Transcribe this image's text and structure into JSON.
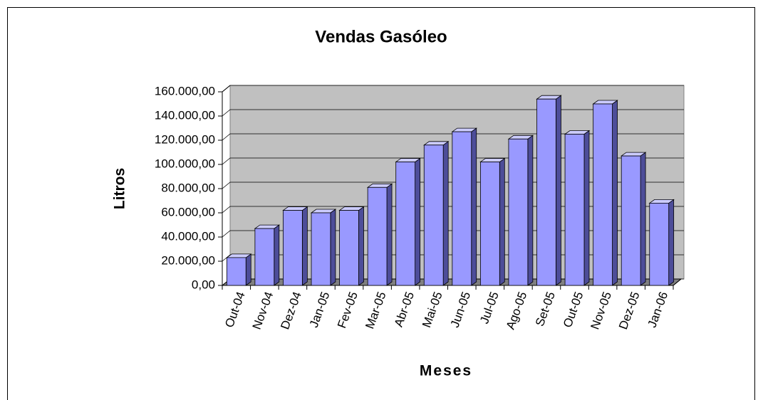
{
  "chart_data": {
    "type": "bar3d",
    "title": "Vendas Gasóleo",
    "x_label": "Meses",
    "y_label": "Litros",
    "categories": [
      "Out-04",
      "Nov-04",
      "Dez-04",
      "Jan-05",
      "Fev-05",
      "Mar-05",
      "Abr-05",
      "Mai-05",
      "Jun-05",
      "Jul-05",
      "Ago-05",
      "Set-05",
      "Out-05",
      "Nov-05",
      "Dez-05",
      "Jan-06"
    ],
    "values": [
      23000,
      47000,
      62000,
      60000,
      62000,
      81000,
      102000,
      116000,
      127000,
      102000,
      121000,
      154000,
      125000,
      150000,
      107000,
      68000
    ],
    "color": "#9999ff",
    "ylim": [
      0,
      160000
    ],
    "yticks": [
      {
        "value": 0,
        "label": "0,00"
      },
      {
        "value": 20000,
        "label": "20.000,00"
      },
      {
        "value": 40000,
        "label": "40.000,00"
      },
      {
        "value": 60000,
        "label": "60.000,00"
      },
      {
        "value": 80000,
        "label": "80.000,00"
      },
      {
        "value": 100000,
        "label": "100.000,00"
      },
      {
        "value": 120000,
        "label": "120.000,00"
      },
      {
        "value": 140000,
        "label": "140.000,00"
      },
      {
        "value": 160000,
        "label": "160.000,00"
      }
    ],
    "grid": true
  }
}
